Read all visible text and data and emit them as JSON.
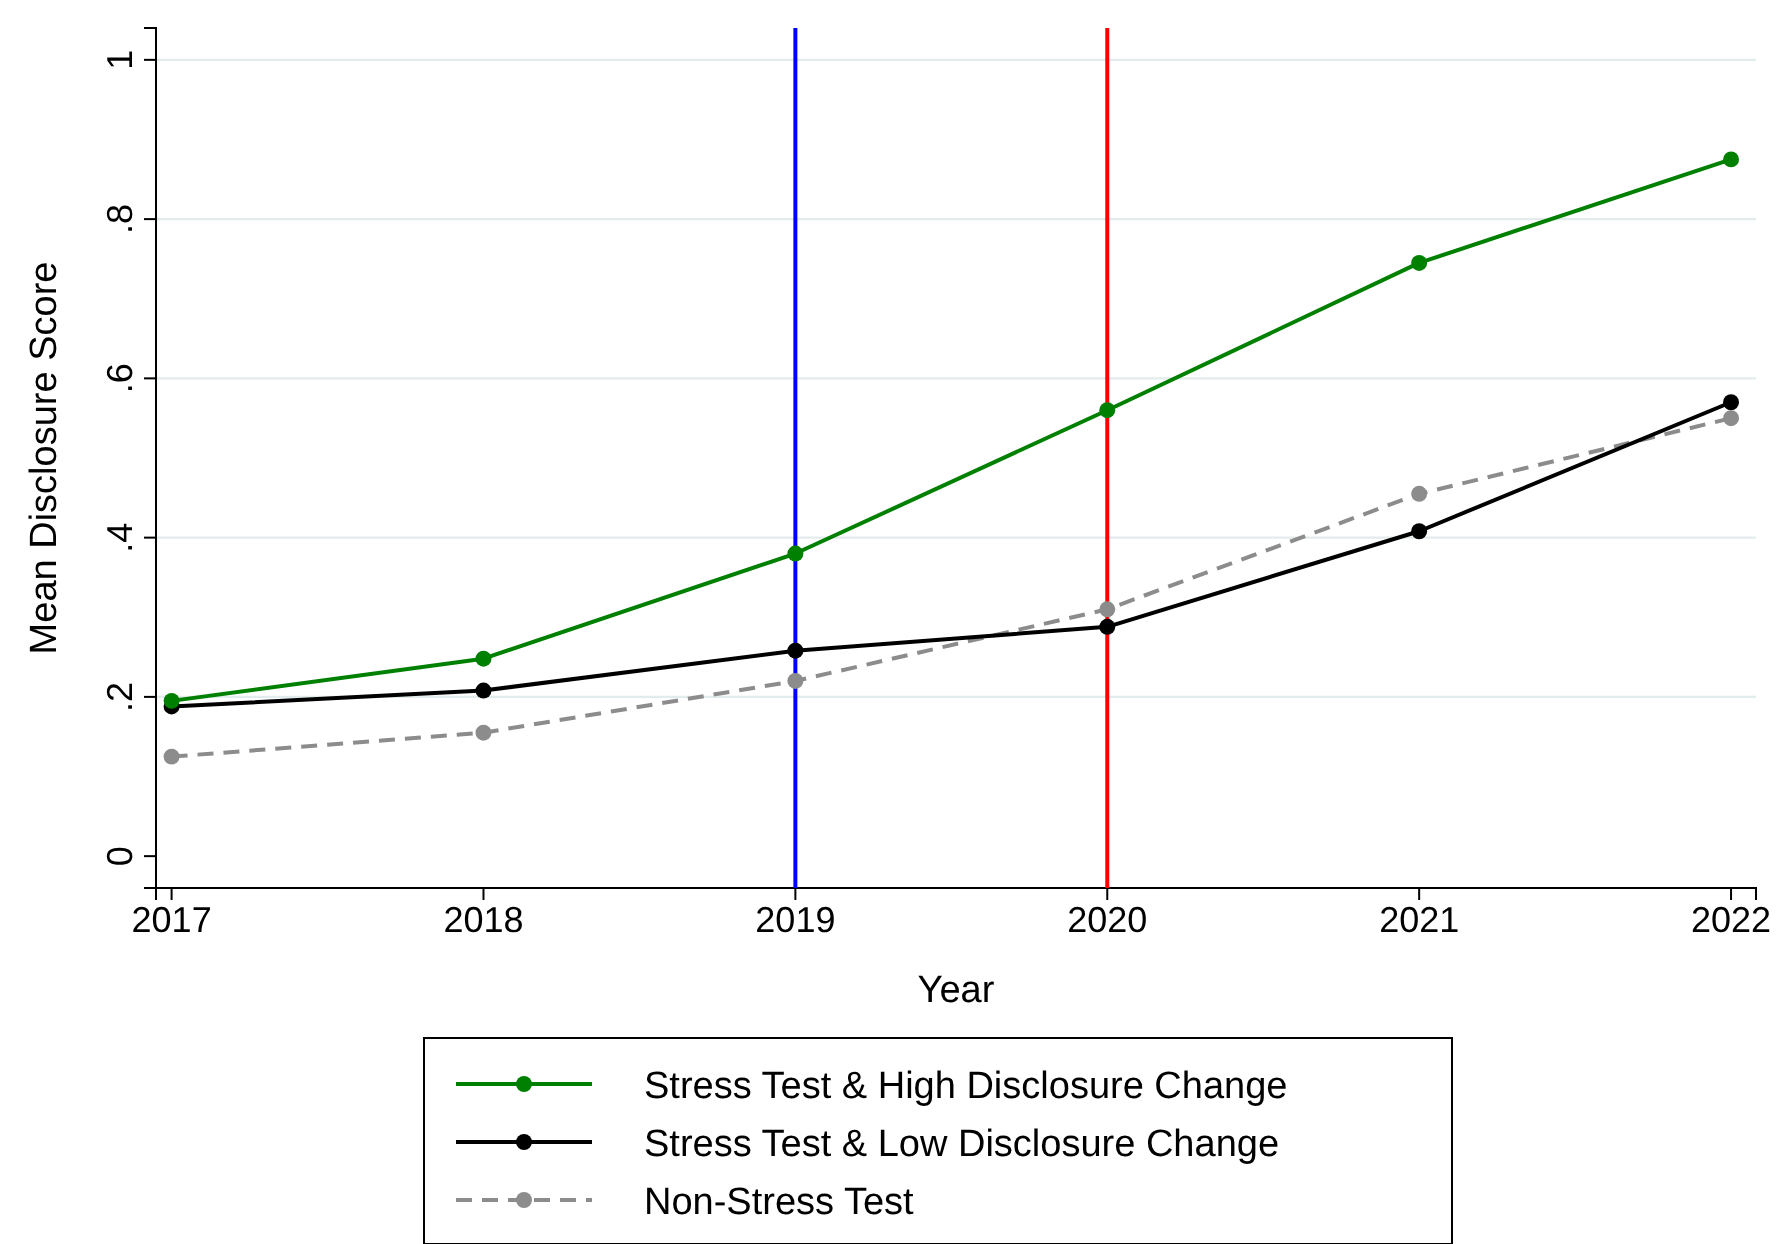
{
  "chart_data": {
    "type": "line",
    "xlabel": "Year",
    "ylabel": "Mean Disclosure Score",
    "x": [
      2017,
      2018,
      2019,
      2020,
      2021,
      2022
    ],
    "series": [
      {
        "name": "Stress Test & High Disclosure Change",
        "color": "#008000",
        "values": [
          0.195,
          0.248,
          0.38,
          0.56,
          0.745,
          0.875
        ]
      },
      {
        "name": "Stress Test & Low Disclosure Change",
        "color": "#000000",
        "values": [
          0.188,
          0.208,
          0.258,
          0.288,
          0.408,
          0.57
        ]
      },
      {
        "name": "Non-Stress Test",
        "color": "#8c8c8c",
        "values": [
          0.125,
          0.155,
          0.22,
          0.31,
          0.455,
          0.55
        ],
        "line_style": "dashed"
      }
    ],
    "xlim": [
      2016.95,
      2022.08
    ],
    "xticks": [
      2017,
      2018,
      2019,
      2020,
      2021,
      2022
    ],
    "ylim": [
      -0.04,
      1.04
    ],
    "yticks": [
      {
        "value": 0,
        "label": "0"
      },
      {
        "value": 0.2,
        "label": ".2"
      },
      {
        "value": 0.4,
        "label": ".4"
      },
      {
        "value": 0.6,
        "label": ".6"
      },
      {
        "value": 0.8,
        "label": ".8"
      },
      {
        "value": 1,
        "label": "1"
      }
    ],
    "grid": "y",
    "marker": "circle",
    "legend": "bottom",
    "ref_lines": [
      {
        "axis": "x",
        "value": 2019,
        "color": "#0000ff"
      },
      {
        "axis": "x",
        "value": 2020,
        "color": "#ff0000"
      }
    ]
  }
}
